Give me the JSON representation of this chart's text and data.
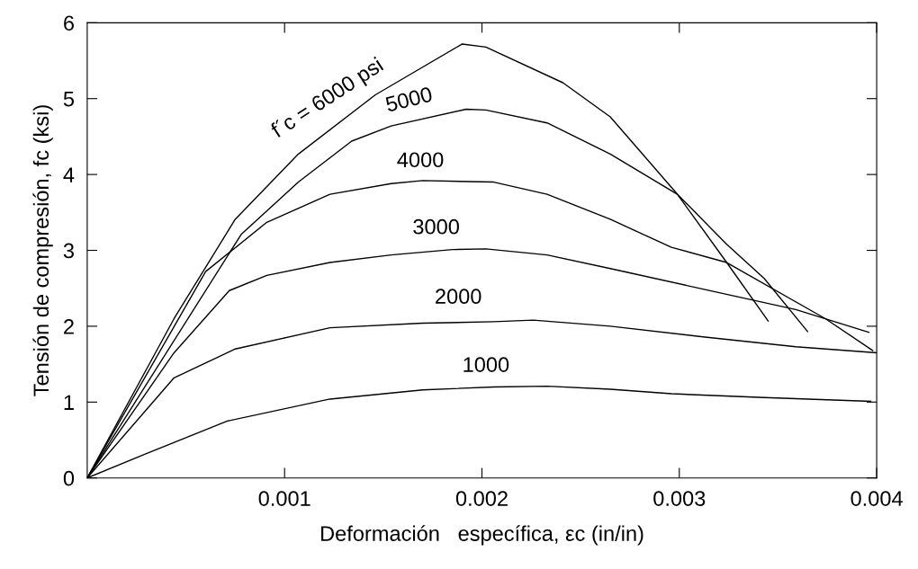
{
  "chart_data": {
    "type": "line",
    "xlabel": "Deformación   específica, εc (in/in)",
    "ylabel": "Tensión de compresión, fc (ksi)",
    "xlim": [
      0,
      0.004
    ],
    "ylim": [
      0,
      6
    ],
    "xticks": [
      0.001,
      0.002,
      0.003,
      0.004
    ],
    "yticks": [
      0,
      1,
      2,
      3,
      4,
      5,
      6
    ],
    "grid": false,
    "marker": "none",
    "line_style": "solid",
    "series": [
      {
        "name": "f´c = 6000 psi",
        "color": "#000000",
        "x": [
          0,
          0.00044,
          0.00075,
          0.00107,
          0.00146,
          0.0019,
          0.00202,
          0.00241,
          0.00265,
          0.00299,
          0.00324,
          0.00345
        ],
        "values": [
          0,
          2.1,
          3.41,
          4.27,
          5.05,
          5.72,
          5.68,
          5.21,
          4.76,
          3.74,
          2.84,
          2.07
        ]
      },
      {
        "name": "5000",
        "color": "#000000",
        "x": [
          0,
          0.00078,
          0.00107,
          0.00134,
          0.00154,
          0.00192,
          0.00202,
          0.00233,
          0.00265,
          0.00299,
          0.00324,
          0.00343,
          0.00365
        ],
        "values": [
          0,
          3.21,
          3.9,
          4.44,
          4.64,
          4.86,
          4.85,
          4.68,
          4.27,
          3.74,
          3.08,
          2.63,
          1.93
        ]
      },
      {
        "name": "4000",
        "color": "#000000",
        "x": [
          0,
          0.0006,
          0.00091,
          0.00123,
          0.00154,
          0.0017,
          0.00206,
          0.00233,
          0.00265,
          0.00296,
          0.00324,
          0.00374,
          0.00398
        ],
        "values": [
          0,
          2.72,
          3.37,
          3.74,
          3.88,
          3.92,
          3.9,
          3.74,
          3.41,
          3.04,
          2.84,
          2.1,
          1.68
        ]
      },
      {
        "name": "3000",
        "color": "#000000",
        "x": [
          0,
          0.00044,
          0.00072,
          0.00091,
          0.00123,
          0.00154,
          0.00185,
          0.00202,
          0.00233,
          0.00265,
          0.00312,
          0.00359,
          0.00396
        ],
        "values": [
          0,
          1.65,
          2.47,
          2.67,
          2.84,
          2.94,
          3.01,
          3.02,
          2.94,
          2.76,
          2.49,
          2.22,
          1.92
        ]
      },
      {
        "name": "2000",
        "color": "#000000",
        "x": [
          0,
          0.00044,
          0.00075,
          0.00123,
          0.0017,
          0.00206,
          0.00226,
          0.00265,
          0.00312,
          0.00359,
          0.004
        ],
        "values": [
          0,
          1.32,
          1.7,
          1.98,
          2.04,
          2.06,
          2.08,
          2.0,
          1.86,
          1.73,
          1.65
        ]
      },
      {
        "name": "1000",
        "color": "#000000",
        "x": [
          0,
          0.00028,
          0.00071,
          0.00123,
          0.0017,
          0.00206,
          0.00233,
          0.00265,
          0.00296,
          0.00343,
          0.00397
        ],
        "values": [
          0,
          0.3,
          0.75,
          1.04,
          1.16,
          1.2,
          1.21,
          1.17,
          1.11,
          1.06,
          1.01
        ]
      }
    ]
  }
}
